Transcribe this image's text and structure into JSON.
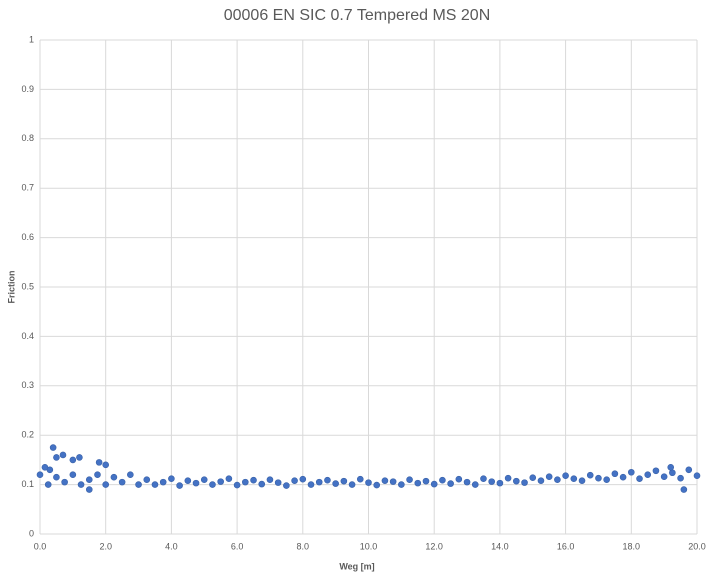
{
  "chart_data": {
    "type": "scatter",
    "title": "00006 EN SIC 0.7 Tempered  MS 20N",
    "x_label": "Weg [m]",
    "y_label": "Friction",
    "xlim": [
      0,
      20
    ],
    "ylim": [
      0,
      1
    ],
    "xticks": [
      {
        "value": 0,
        "label": "0.0"
      },
      {
        "value": 2,
        "label": "2.0"
      },
      {
        "value": 4,
        "label": "4.0"
      },
      {
        "value": 6,
        "label": "6.0"
      },
      {
        "value": 8,
        "label": "8.0"
      },
      {
        "value": 10,
        "label": "10.0"
      },
      {
        "value": 12,
        "label": "12.0"
      },
      {
        "value": 14,
        "label": "14.0"
      },
      {
        "value": 16,
        "label": "16.0"
      },
      {
        "value": 18,
        "label": "18.0"
      },
      {
        "value": 20,
        "label": "20.0"
      }
    ],
    "yticks": [
      0,
      0.1,
      0.2,
      0.3,
      0.4,
      0.5,
      0.6,
      0.7,
      0.8,
      0.9,
      1
    ],
    "grid": true,
    "color": "#4472c4",
    "x": [
      0,
      0.25,
      0.5,
      0.75,
      1,
      1.25,
      1.5,
      1.75,
      2,
      2.25,
      2.5,
      2.75,
      3,
      3.25,
      3.5,
      3.75,
      4,
      4.25,
      4.5,
      4.75,
      5,
      5.25,
      5.5,
      5.75,
      6,
      6.25,
      6.5,
      6.75,
      7,
      7.25,
      7.5,
      7.75,
      8,
      8.25,
      8.5,
      8.75,
      9,
      9.25,
      9.5,
      9.75,
      10,
      10.25,
      10.5,
      10.75,
      11,
      11.25,
      11.5,
      11.75,
      12,
      12.25,
      12.5,
      12.75,
      13,
      13.25,
      13.5,
      13.75,
      14,
      14.25,
      14.5,
      14.75,
      15,
      15.25,
      15.5,
      15.75,
      16,
      16.25,
      16.5,
      16.75,
      17,
      17.25,
      17.5,
      17.75,
      18,
      18.25,
      18.5,
      18.75,
      19,
      19.25,
      19.5,
      19.75,
      20,
      0.4,
      0.5,
      0.7,
      1.0,
      1.2,
      1.8,
      2.0,
      0.3,
      0.15,
      19.6,
      19.2,
      1.5
    ],
    "values": [
      0.12,
      0.1,
      0.115,
      0.105,
      0.12,
      0.1,
      0.11,
      0.12,
      0.1,
      0.115,
      0.105,
      0.12,
      0.1,
      0.11,
      0.1,
      0.105,
      0.112,
      0.098,
      0.108,
      0.103,
      0.11,
      0.1,
      0.106,
      0.112,
      0.099,
      0.105,
      0.109,
      0.101,
      0.11,
      0.104,
      0.098,
      0.108,
      0.111,
      0.1,
      0.105,
      0.109,
      0.102,
      0.107,
      0.1,
      0.111,
      0.104,
      0.099,
      0.108,
      0.106,
      0.1,
      0.11,
      0.103,
      0.107,
      0.101,
      0.109,
      0.102,
      0.111,
      0.105,
      0.1,
      0.112,
      0.106,
      0.103,
      0.113,
      0.107,
      0.104,
      0.114,
      0.108,
      0.116,
      0.11,
      0.118,
      0.112,
      0.108,
      0.119,
      0.113,
      0.11,
      0.122,
      0.115,
      0.125,
      0.112,
      0.12,
      0.128,
      0.116,
      0.124,
      0.113,
      0.13,
      0.118,
      0.175,
      0.155,
      0.16,
      0.15,
      0.155,
      0.145,
      0.14,
      0.13,
      0.135,
      0.09,
      0.135,
      0.09
    ]
  }
}
